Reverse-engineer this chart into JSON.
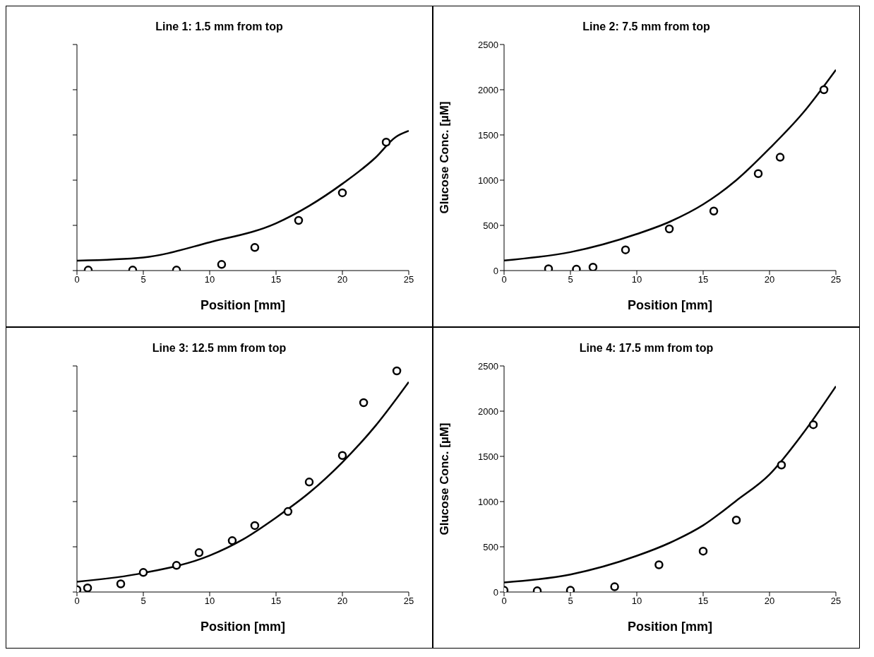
{
  "chart_data": [
    {
      "type": "scatter",
      "title": "Line 1: 1.5 mm from top",
      "xlabel": "Position [mm]",
      "xlim": [
        0,
        25
      ],
      "xticks": [
        0,
        5,
        10,
        15,
        20,
        25
      ],
      "ylim": [
        0,
        2500
      ],
      "yticks": [
        0,
        500,
        1000,
        1500,
        2000,
        2500
      ],
      "tick_labels": "x",
      "series": [
        {
          "marker": "circle",
          "color": "#000000",
          "x": [
            0.85,
            4.2,
            7.5,
            10.9,
            13.4,
            16.7,
            20.0,
            23.3
          ],
          "values": [
            5,
            5,
            5,
            68,
            255,
            555,
            860,
            1420
          ]
        },
        {
          "type": "line",
          "marker": "none",
          "line_style": "solid",
          "color": "#000000",
          "x": [
            0,
            5,
            10,
            15,
            17.5,
            20,
            22.5,
            24,
            25
          ],
          "values": [
            110,
            145,
            313,
            523,
            716,
            960,
            1250,
            1475,
            1545
          ]
        }
      ]
    },
    {
      "type": "scatter",
      "title": "Line 2: 7.5 mm from top",
      "xlabel": "Position [mm]",
      "ylabel": "Glucose Conc. [µM]",
      "xlim": [
        0,
        25
      ],
      "xticks": [
        0,
        5,
        10,
        15,
        20,
        25
      ],
      "ylim": [
        0,
        2500
      ],
      "yticks": [
        0,
        500,
        1000,
        1500,
        2000,
        2500
      ],
      "series": [
        {
          "marker": "circle",
          "color": "#000000",
          "x": [
            3.35,
            5.45,
            6.7,
            9.15,
            12.45,
            15.8,
            19.15,
            20.8,
            24.1
          ],
          "values": [
            20,
            15,
            38,
            229,
            461,
            658,
            1072,
            1253,
            2000
          ]
        },
        {
          "type": "line",
          "marker": "none",
          "line_style": "solid",
          "color": "#000000",
          "x": [
            0,
            5,
            10,
            12.5,
            15,
            17.5,
            20,
            22.5,
            25
          ],
          "values": [
            111,
            204,
            404,
            541,
            732,
            1000,
            1350,
            1740,
            2220
          ]
        }
      ]
    },
    {
      "type": "scatter",
      "title": "Line 3: 12.5 mm from top",
      "xlabel": "Position [mm]",
      "xlim": [
        0,
        25
      ],
      "xticks": [
        0,
        5,
        10,
        15,
        20,
        25
      ],
      "ylim": [
        0,
        2500
      ],
      "yticks": [
        0,
        500,
        1000,
        1500,
        2000,
        2500
      ],
      "tick_labels": "x",
      "series": [
        {
          "marker": "circle",
          "color": "#000000",
          "x": [
            0,
            0.8,
            3.3,
            5.0,
            7.5,
            9.2,
            11.7,
            13.4,
            15.9,
            17.5,
            20.0,
            21.6,
            24.1
          ],
          "values": [
            26,
            45,
            90,
            216,
            294,
            435,
            568,
            735,
            890,
            1216,
            1510,
            2094,
            2445
          ]
        },
        {
          "type": "line",
          "marker": "none",
          "line_style": "solid",
          "color": "#000000",
          "x": [
            0,
            5,
            10,
            12.5,
            15,
            17.5,
            20,
            22.5,
            25
          ],
          "values": [
            113,
            210,
            403,
            581,
            823,
            1097,
            1435,
            1839,
            2323
          ]
        }
      ]
    },
    {
      "type": "scatter",
      "title": "Line 4: 17.5 mm from top",
      "xlabel": "Position [mm]",
      "ylabel": "Glucose Conc. [µM]",
      "xlim": [
        0,
        25
      ],
      "xticks": [
        0,
        5,
        10,
        15,
        20,
        25
      ],
      "ylim": [
        0,
        2500
      ],
      "yticks": [
        0,
        500,
        1000,
        1500,
        2000,
        2500
      ],
      "series": [
        {
          "marker": "circle",
          "color": "#000000",
          "x": [
            0,
            2.5,
            5.0,
            8.33,
            11.67,
            15.0,
            17.5,
            20.9,
            23.3
          ],
          "values": [
            19,
            13,
            19,
            58,
            301,
            452,
            795,
            1404,
            1850
          ]
        },
        {
          "type": "line",
          "marker": "none",
          "line_style": "solid",
          "color": "#000000",
          "x": [
            0,
            5,
            10,
            12.5,
            15,
            17.5,
            20,
            22.5,
            25
          ],
          "values": [
            106,
            194,
            400,
            545,
            737,
            1010,
            1300,
            1750,
            2275
          ]
        }
      ]
    }
  ]
}
